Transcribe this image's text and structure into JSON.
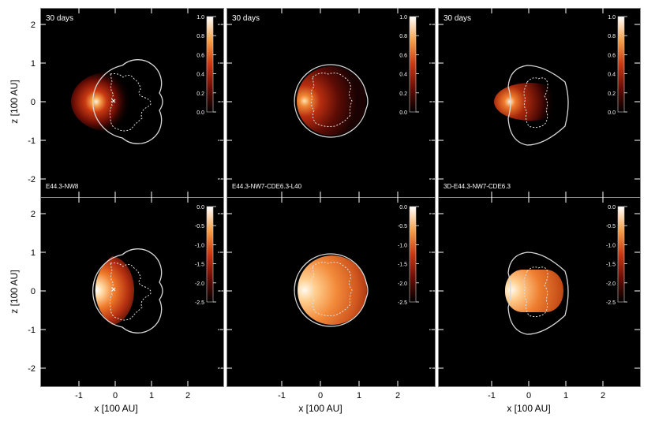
{
  "figure": {
    "xlabel": "x [100 AU]",
    "ylabel": "z [100 AU]",
    "time_label": "30 days",
    "x_ticks": [
      "-1",
      "0",
      "1",
      "2"
    ],
    "y_ticks": [
      "2",
      "1",
      "0",
      "-1",
      "-2"
    ]
  },
  "chart_data": [
    {
      "type": "heatmap",
      "model": "E44.3-NW8",
      "time": "30 days",
      "colorbar_ticks": [
        "1.0",
        "0.8",
        "0.6",
        "0.4",
        "0.2",
        "0.0"
      ],
      "colorbar_range": [
        0,
        1
      ],
      "shell": "sphere",
      "xlim": [
        -2.5,
        3
      ],
      "ylim": [
        -2.5,
        2.5
      ]
    },
    {
      "type": "heatmap",
      "model": "E44.3-NW7-CDE6.3-L40",
      "time": "30 days",
      "colorbar_ticks": [
        "1.0",
        "0.8",
        "0.6",
        "0.4",
        "0.2",
        "0.0"
      ],
      "colorbar_range": [
        0,
        1
      ],
      "shell": "sphere",
      "xlim": [
        -2.5,
        3
      ],
      "ylim": [
        -2.5,
        2.5
      ]
    },
    {
      "type": "heatmap",
      "model": "3D-E44.3-NW7-CDE6.3",
      "time": "30 days",
      "colorbar_ticks": [
        "1.0",
        "0.8",
        "0.6",
        "0.4",
        "0.2",
        "0.0"
      ],
      "colorbar_range": [
        0,
        1
      ],
      "shell": "capsule",
      "xlim": [
        -2.5,
        3
      ],
      "ylim": [
        -2.5,
        2.5
      ]
    },
    {
      "type": "heatmap",
      "model": "",
      "time": "",
      "colorbar_ticks": [
        "0.0",
        "-0.5",
        "-1.0",
        "-1.5",
        "-2.0",
        "-2.5"
      ],
      "colorbar_range": [
        -2.5,
        0
      ],
      "shell": "sphere",
      "xlim": [
        -2.5,
        3
      ],
      "ylim": [
        -2.5,
        2.5
      ]
    },
    {
      "type": "heatmap",
      "model": "",
      "time": "",
      "colorbar_ticks": [
        "0.0",
        "-0.5",
        "-1.0",
        "-1.5",
        "-2.0",
        "-2.5"
      ],
      "colorbar_range": [
        -2.5,
        0
      ],
      "shell": "sphere",
      "xlim": [
        -2.5,
        3
      ],
      "ylim": [
        -2.5,
        2.5
      ]
    },
    {
      "type": "heatmap",
      "model": "",
      "time": "",
      "colorbar_ticks": [
        "0.0",
        "-0.5",
        "-1.0",
        "-1.5",
        "-2.0",
        "-2.5"
      ],
      "colorbar_range": [
        -2.5,
        0
      ],
      "shell": "capsule",
      "xlim": [
        -2.5,
        3
      ],
      "ylim": [
        -2.5,
        2.5
      ]
    }
  ],
  "colors": {
    "background": "#000000",
    "contour": "#d8d8d8",
    "heat_hot": "#fff6e0",
    "heat_mid": "#e6661e",
    "heat_dark": "#6a0d05"
  }
}
